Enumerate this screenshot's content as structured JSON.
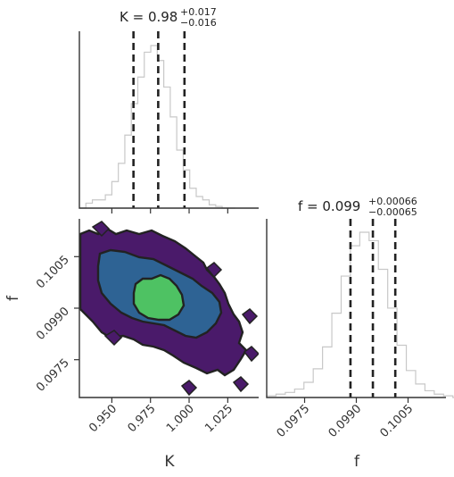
{
  "chart_data": [
    {
      "type": "histogram",
      "variable": "K",
      "title": {
        "prefix": "K = 0.98",
        "plus": "+0.017",
        "minus": "−0.016"
      },
      "quantiles": [
        0.964,
        0.98,
        0.997
      ],
      "xlim": [
        0.929,
        1.045
      ],
      "bins_x": [
        0.929,
        0.9332,
        0.9374,
        0.9416,
        0.9458,
        0.95,
        0.9542,
        0.9584,
        0.9626,
        0.9668,
        0.971,
        0.9752,
        0.9794,
        0.9836,
        0.9878,
        0.992,
        0.9962,
        1.0004,
        1.0046,
        1.0088,
        1.013,
        1.0172,
        1.0214,
        1.0256
      ],
      "counts": [
        0,
        3,
        5,
        5,
        8,
        16,
        27,
        44,
        63,
        79,
        94,
        98,
        89,
        73,
        55,
        35,
        23,
        12,
        7,
        5,
        2,
        1,
        0,
        0
      ]
    },
    {
      "type": "histogram",
      "variable": "f",
      "title": {
        "prefix": "f = 0.099",
        "plus": "+0.00066",
        "minus": "−0.00065"
      },
      "quantiles": [
        0.09883,
        0.09948,
        0.10013
      ],
      "xlim": [
        0.0964,
        0.1016
      ],
      "bins_x": [
        0.0964,
        0.09667,
        0.09694,
        0.09721,
        0.09748,
        0.09775,
        0.09802,
        0.09829,
        0.09856,
        0.09883,
        0.0991,
        0.09937,
        0.09964,
        0.09991,
        0.10018,
        0.10045,
        0.10072,
        0.10099,
        0.10126,
        0.10153,
        0.1018
      ],
      "counts": [
        1,
        2,
        3,
        5,
        9,
        17,
        30,
        50,
        72,
        90,
        98,
        93,
        76,
        53,
        31,
        16,
        8,
        4,
        2,
        1,
        0
      ]
    },
    {
      "type": "contour",
      "x": "K",
      "y": "f",
      "xlim": [
        0.929,
        1.045
      ],
      "ylim": [
        0.0964,
        0.1016
      ],
      "levels": [
        {
          "name": "outer",
          "color": "#4a1a6a"
        },
        {
          "name": "mid",
          "color": "#2e6394"
        },
        {
          "name": "core",
          "color": "#4ec263"
        }
      ],
      "center": [
        0.976,
        0.0997
      ]
    }
  ],
  "axes": {
    "K": {
      "label": "K",
      "ticks": [
        "0.950",
        "0.975",
        "1.000",
        "1.025"
      ]
    },
    "f": {
      "label": "f",
      "ticks": [
        "0.0975",
        "0.0990",
        "0.1005"
      ]
    }
  },
  "colors": {
    "hist": "#c8c8c8",
    "quantile": "#222222",
    "outer": "#4a1a6a",
    "mid": "#2e6394",
    "core": "#4ec263",
    "contour": "#222222"
  }
}
